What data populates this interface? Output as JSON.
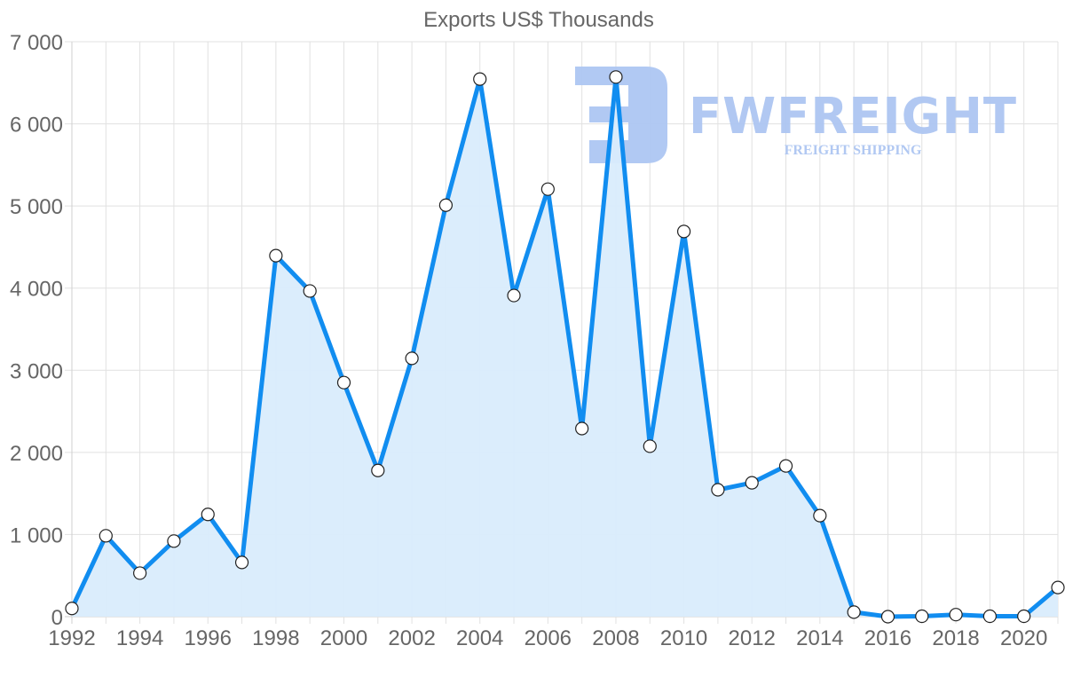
{
  "chart_data": {
    "type": "line",
    "title": "Exports US$ Thousands",
    "xlabel": "",
    "ylabel": "",
    "x": [
      1992,
      1993,
      1994,
      1995,
      1996,
      1997,
      1998,
      1999,
      2000,
      2001,
      2002,
      2003,
      2004,
      2005,
      2006,
      2007,
      2008,
      2009,
      2010,
      2011,
      2012,
      2013,
      2014,
      2015,
      2016,
      2017,
      2018,
      2019,
      2020,
      2021
    ],
    "series": [
      {
        "name": "Exports US$ Thousands",
        "values": [
          100,
          985,
          530,
          920,
          1245,
          660,
          4395,
          3965,
          2850,
          1780,
          3145,
          5010,
          6545,
          3910,
          5205,
          2290,
          6570,
          2075,
          4690,
          1545,
          1630,
          1835,
          1230,
          55,
          0,
          5,
          25,
          5,
          5,
          355
        ],
        "color": "#118df0",
        "fill": "#d9ecfc",
        "area": true,
        "markers": true
      }
    ],
    "ylim": [
      0,
      7000
    ],
    "yticks": [
      0,
      1000,
      2000,
      3000,
      4000,
      5000,
      6000,
      7000
    ],
    "ytick_labels": [
      "0",
      "1 000",
      "2 000",
      "3 000",
      "4 000",
      "5 000",
      "6 000",
      "7 000"
    ],
    "xtick_labels": [
      "1992",
      "1994",
      "1996",
      "1998",
      "2000",
      "2002",
      "2004",
      "2006",
      "2008",
      "2010",
      "2012",
      "2014",
      "2016",
      "2018",
      "2020"
    ],
    "grid": true,
    "legend": "none"
  },
  "watermark": {
    "brand": "FWFREIGHT",
    "tagline": "FREIGHT SHIPPING",
    "color": "#adc6f2"
  },
  "colors": {
    "line": "#118df0",
    "area": "#d9ecfc",
    "grid": "#e1e1e1",
    "text": "#666666"
  }
}
